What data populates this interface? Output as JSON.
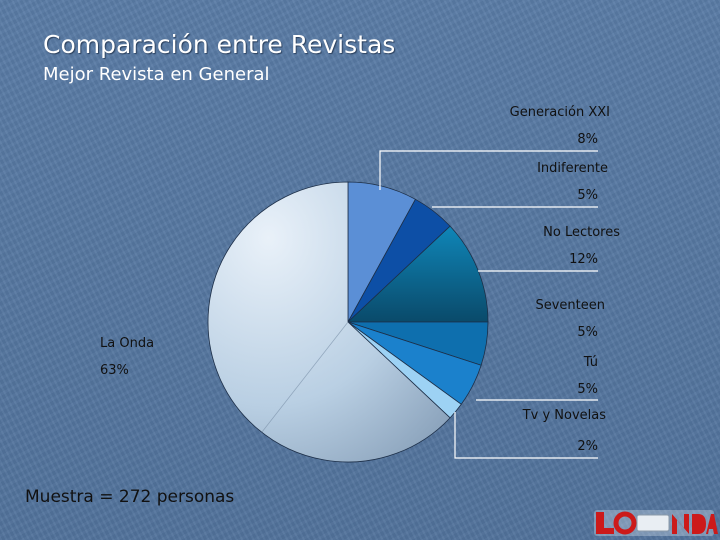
{
  "slide": {
    "title": "Comparación entre Revistas",
    "subtitle": "Mejor Revista en General",
    "footer": "Muestra = 272 personas"
  },
  "chart_data": {
    "type": "pie",
    "title": "Mejor Revista en General",
    "legend": "none",
    "slices": [
      {
        "label": "Generación XXI",
        "value": 8,
        "value_label": "8%",
        "color": "#5b8fd6"
      },
      {
        "label": "Indiferente",
        "value": 5,
        "value_label": "5%",
        "color": "#0d4fa6"
      },
      {
        "label": "No Lectores",
        "value": 12,
        "value_label": "12%",
        "color": "#0a6c96"
      },
      {
        "label": "Seventeen",
        "value": 5,
        "value_label": "5%",
        "color": "#0e6fae"
      },
      {
        "label": "Tú",
        "value": 5,
        "value_label": "5%",
        "color": "#1b81cc"
      },
      {
        "label": "Tv y Novelas",
        "value": 2,
        "value_label": "2%",
        "color": "#9dd2f4"
      },
      {
        "label": "La Onda",
        "value": 63,
        "value_label": "63%",
        "color": "#b9cfe3"
      }
    ]
  },
  "logo": {
    "text": "LaONDA",
    "colors": [
      "#cc1a1a",
      "#ffffff"
    ]
  }
}
